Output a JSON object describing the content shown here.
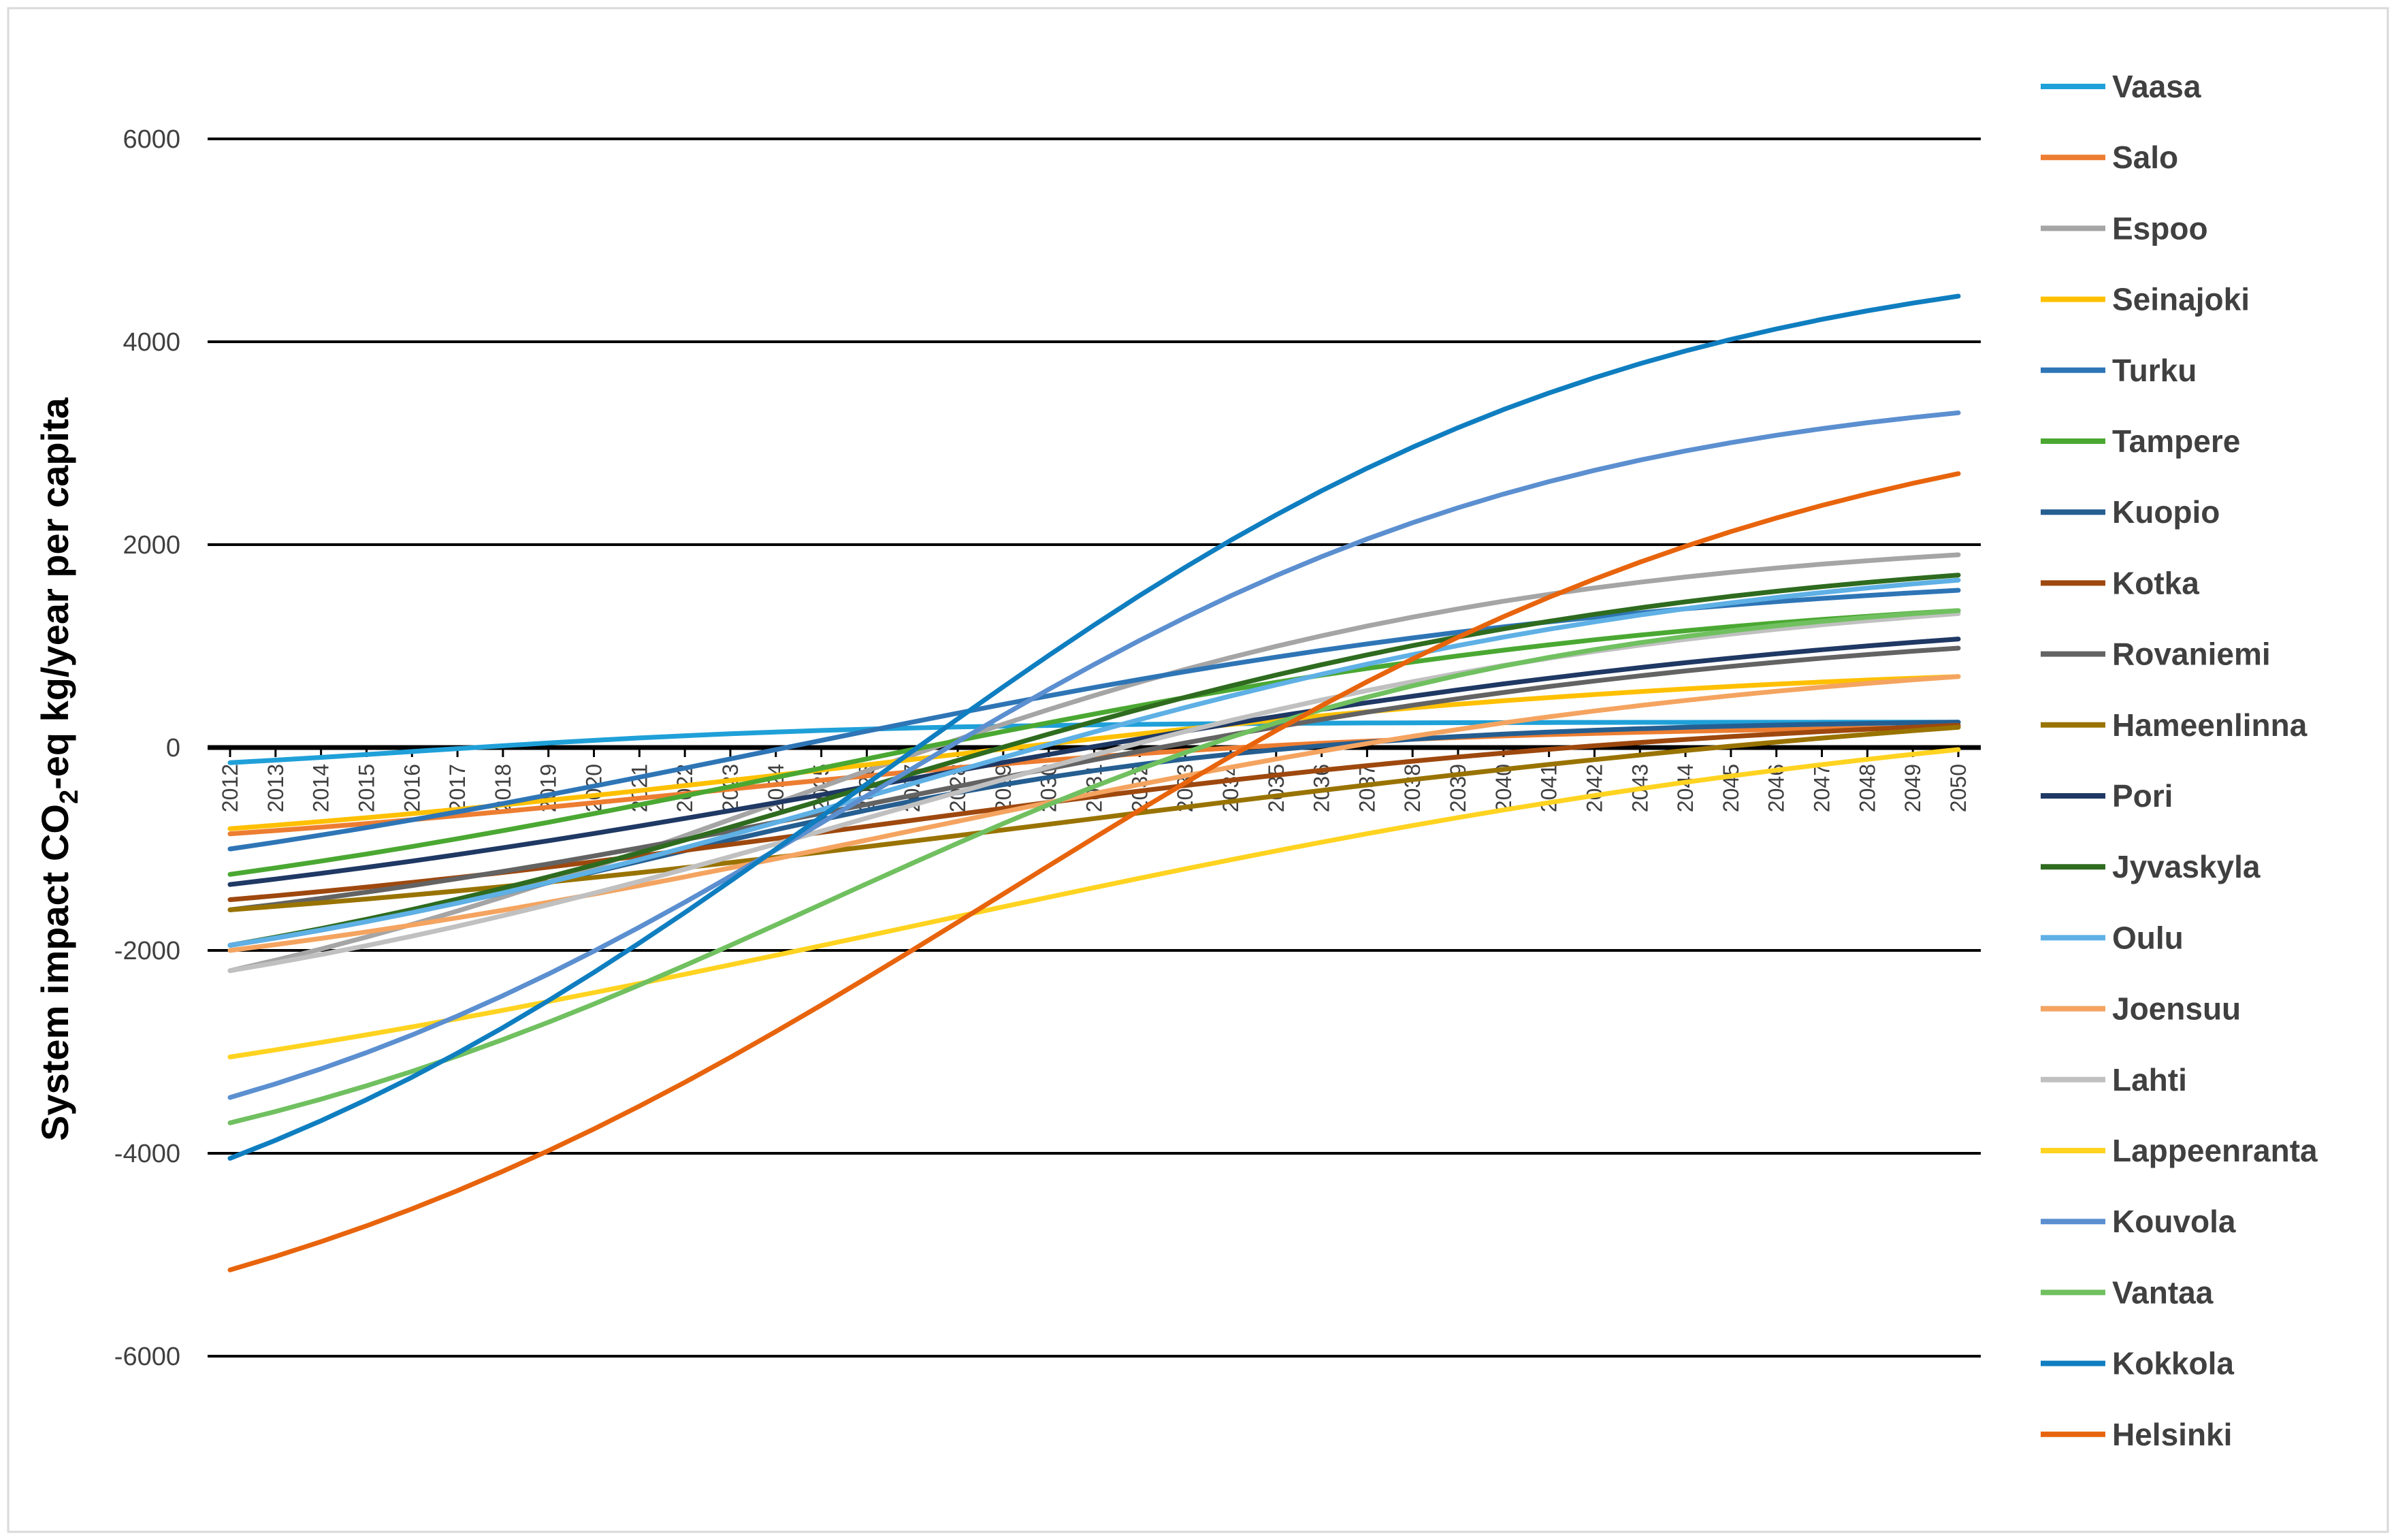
{
  "chart_data": {
    "type": "line",
    "ylabel": "System impact CO2-eq  kg/year per capita",
    "ylabel_parts": {
      "before": "System impact CO",
      "sub": "2",
      "after": "-eq  kg/year per capita"
    },
    "ylim": [
      -6700,
      7000
    ],
    "yticks": [
      -6000,
      -4000,
      -2000,
      0,
      2000,
      4000,
      6000
    ],
    "grid": true,
    "legend_position": "right",
    "x": [
      2012,
      2013,
      2014,
      2015,
      2016,
      2017,
      2018,
      2019,
      2020,
      2021,
      2022,
      2023,
      2024,
      2025,
      2026,
      2027,
      2028,
      2029,
      2030,
      2031,
      2032,
      2033,
      2034,
      2035,
      2036,
      2037,
      2038,
      2039,
      2040,
      2041,
      2042,
      2043,
      2044,
      2045,
      2046,
      2047,
      2048,
      2049,
      2050
    ],
    "series": [
      {
        "name": "Vaasa",
        "color": "#1fa0d8",
        "start": -150,
        "end": 250,
        "k": 0.2,
        "mid": 2016,
        "base": -170
      },
      {
        "name": "Salo",
        "color": "#ed7d31",
        "start": -850,
        "end": 200,
        "k": 0.13,
        "mid": 2022
      },
      {
        "name": "Espoo",
        "color": "#a5a5a5",
        "start": -2200,
        "end": 1900,
        "k": 0.12,
        "mid": 2024
      },
      {
        "name": "Seinajoki",
        "color": "#ffc000",
        "start": -800,
        "end": 700,
        "k": 0.1,
        "mid": 2026
      },
      {
        "name": "Turku",
        "color": "#2e75b6",
        "start": -1000,
        "end": 1550,
        "k": 0.1,
        "mid": 2024
      },
      {
        "name": "Tampere",
        "color": "#4aa832",
        "start": -1250,
        "end": 1350,
        "k": 0.1,
        "mid": 2025
      },
      {
        "name": "Kuopio",
        "color": "#255e91",
        "start": -1950,
        "end": 250,
        "k": 0.15,
        "mid": 2021
      },
      {
        "name": "Kotka",
        "color": "#9e480e",
        "start": -1500,
        "end": 220,
        "k": 0.1,
        "mid": 2026
      },
      {
        "name": "Rovaniemi",
        "color": "#636363",
        "start": -1600,
        "end": 980,
        "k": 0.1,
        "mid": 2027
      },
      {
        "name": "Hameenlinna",
        "color": "#997300",
        "start": -1600,
        "end": 200,
        "k": 0.08,
        "mid": 2031
      },
      {
        "name": "Pori",
        "color": "#1f3864",
        "start": -1350,
        "end": 1070,
        "k": 0.09,
        "mid": 2027
      },
      {
        "name": "Jyvaskyla",
        "color": "#2e6b1f",
        "start": -1950,
        "end": 1700,
        "k": 0.11,
        "mid": 2026
      },
      {
        "name": "Oulu",
        "color": "#5eb0e5",
        "start": -1950,
        "end": 1650,
        "k": 0.11,
        "mid": 2027
      },
      {
        "name": "Joensuu",
        "color": "#f4a460",
        "start": -2000,
        "end": 700,
        "k": 0.1,
        "mid": 2027
      },
      {
        "name": "Lahti",
        "color": "#c0c0c0",
        "start": -2200,
        "end": 1320,
        "k": 0.11,
        "mid": 2026
      },
      {
        "name": "Lappeenranta",
        "color": "#ffd320",
        "start": -3050,
        "end": -20,
        "k": 0.08,
        "mid": 2027
      },
      {
        "name": "Kouvola",
        "color": "#5b8fd0",
        "start": -3450,
        "end": 3300,
        "k": 0.13,
        "mid": 2026
      },
      {
        "name": "Vantaa",
        "color": "#70c060",
        "start": -3700,
        "end": 1350,
        "k": 0.13,
        "mid": 2025
      },
      {
        "name": "Kokkola",
        "color": "#0f7ec0",
        "start": -4050,
        "end": 4450,
        "k": 0.12,
        "mid": 2026
      },
      {
        "name": "Helsinki",
        "color": "#e8640c",
        "start": -5150,
        "end": 2700,
        "k": 0.11,
        "mid": 2029
      }
    ]
  }
}
